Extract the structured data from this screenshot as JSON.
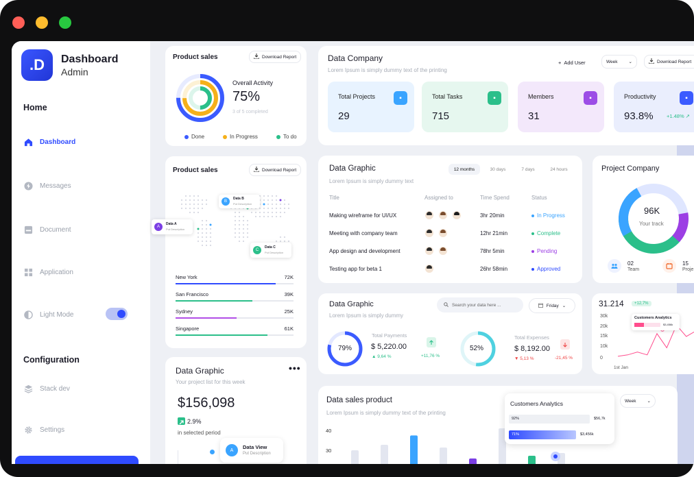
{
  "sidebar": {
    "logo": ".D",
    "brand_title": "Dashboard",
    "brand_sub": "Admin",
    "section_home": "Home",
    "items": [
      {
        "label": "Dashboard",
        "icon": "home-icon",
        "active": true
      },
      {
        "label": "Messages",
        "icon": "bolt-icon"
      },
      {
        "label": "Document",
        "icon": "inbox-icon"
      },
      {
        "label": "Application",
        "icon": "grid-icon"
      },
      {
        "label": "Light Mode",
        "icon": "contrast-icon"
      }
    ],
    "section_config": "Configuration",
    "config_items": [
      {
        "label": "Stack dev",
        "icon": "layers-icon"
      },
      {
        "label": "Settings",
        "icon": "gear-icon"
      }
    ]
  },
  "product_sales_1": {
    "title": "Product sales",
    "download": "Download Report",
    "activity_label": "Overall Activity",
    "percent": "75%",
    "completed": "3 of 5 completed",
    "legend": [
      {
        "label": "Done",
        "color": "#3b5bff"
      },
      {
        "label": "In Progress",
        "color": "#f5b01a"
      },
      {
        "label": "To do",
        "color": "#2bbf8a"
      }
    ]
  },
  "product_sales_2": {
    "title": "Product sales",
    "download": "Download Report",
    "map_pins": [
      {
        "letter": "B",
        "name": "Data B",
        "desc": "Put Description",
        "color": "#3aa4ff"
      },
      {
        "letter": "A",
        "name": "Data A",
        "desc": "Put Description",
        "color": "#7b3fe4"
      },
      {
        "letter": "C",
        "name": "Data C",
        "desc": "Put Description",
        "color": "#2bbf8a"
      }
    ],
    "cities": [
      {
        "name": "New York",
        "value": "72K",
        "fill": 0.85,
        "color": "#2f4bff"
      },
      {
        "name": "San Francisco",
        "value": "39K",
        "fill": 0.65,
        "color": "#2bbf8a"
      },
      {
        "name": "Sydney",
        "value": "25K",
        "fill": 0.52,
        "color": "#b14ee6"
      },
      {
        "name": "Singapore",
        "value": "61K",
        "fill": 0.78,
        "color": "#2bbf8a"
      }
    ]
  },
  "data_graphic_left": {
    "title": "Data Graphic",
    "sub": "Your project list for this week",
    "amount": "$156,098",
    "change": "2.9%",
    "period": "in selected period",
    "tooltip_letter": "A",
    "tooltip_title": "Data View",
    "tooltip_desc": "Put Description"
  },
  "data_company": {
    "title": "Data Company",
    "sub": "Lorem Ipsum is simply dummy text of the printing",
    "add_user": "Add User",
    "period": "Week",
    "download": "Download Report",
    "stats": [
      {
        "label": "Total Projects",
        "value": "29",
        "bg": "#e8f3ff",
        "badge": "#3aa4ff",
        "icon": "book-icon"
      },
      {
        "label": "Total Tasks",
        "value": "715",
        "bg": "#e6f7ef",
        "badge": "#2bbf8a",
        "icon": "briefcase-icon"
      },
      {
        "label": "Members",
        "value": "31",
        "bg": "#f3e8fb",
        "badge": "#9c4de6",
        "icon": "document-icon"
      },
      {
        "label": "Productivity",
        "value": "93.8%",
        "change": "+1.48%",
        "bg": "#eaeefd",
        "badge": "#3b5bff",
        "icon": "users-icon"
      }
    ]
  },
  "data_graphic_table": {
    "title": "Data Graphic",
    "sub": "Lorem Ipsum is simply dummy text",
    "ranges": [
      "12 months",
      "30 days",
      "7 days",
      "24 hours"
    ],
    "columns": [
      "Title",
      "Assigned to",
      "Time Spend",
      "Status"
    ],
    "rows": [
      {
        "title": "Making wireframe for UI/UX",
        "time": "3hr 20min",
        "status": "In Progress",
        "color": "#3aa4ff",
        "avatars": 3
      },
      {
        "title": "Meeting with company team",
        "time": "12hr 21min",
        "status": "Complete",
        "color": "#2bbf8a",
        "avatars": 2
      },
      {
        "title": "App design and development",
        "time": "78hr 5min",
        "status": "Pending",
        "color": "#9c3fe4",
        "avatars": 2
      },
      {
        "title": "Testing app for beta 1",
        "time": "26hr 58min",
        "status": "Approved",
        "color": "#2f4bff",
        "avatars": 1
      }
    ]
  },
  "project_company": {
    "title": "Project Company",
    "value": "96K",
    "label": "Your track",
    "team_count": "02",
    "team_label": "Team",
    "proj_count": "15",
    "proj_label": "Proje"
  },
  "data_graphic_payments": {
    "title": "Data Graphic",
    "sub": "Lorem Ipsum is simply dummy",
    "search_placeholder": "Search your data here ...",
    "day": "Friday",
    "payments_pct": "79%",
    "payments_label": "Total Payments",
    "payments_value": "$ 5,220.00",
    "payments_change": "9,64 %",
    "payments_badge": "+11,76 %",
    "expenses_pct": "52%",
    "expenses_label": "Total Expenses",
    "expenses_value": "$ 8,192.00",
    "expenses_change": "5,13 %",
    "expenses_badge": "-21,45 %"
  },
  "mini_chart": {
    "value": "31.214",
    "badge": "+12,7%",
    "popup_title": "Customers Analytics",
    "popup_value": "$3,456k",
    "x_label": "1st Jan"
  },
  "sales_product": {
    "title": "Data sales product",
    "sub": "Lorem Ipsum is simply dummy text of the printing",
    "period": "Week",
    "popup_title": "Customers Analytics",
    "popup_row1_pct": "92%",
    "popup_row1_val": "$56,7k",
    "popup_row2_pct": "71%",
    "popup_row2_val": "$3,456k"
  },
  "chart_data": [
    {
      "type": "line",
      "x": [
        "1st Jan",
        "",
        "",
        "",
        "",
        "",
        "",
        "",
        ""
      ],
      "series": [
        {
          "values": [
            2,
            3,
            5,
            3,
            18,
            8,
            24,
            16,
            20
          ]
        }
      ],
      "ylim": [
        0,
        30
      ],
      "yticks": [
        "30k",
        "20k",
        "15k",
        "10k",
        "0"
      ]
    },
    {
      "type": "bar",
      "yticks": [
        "40",
        "30"
      ],
      "bars": [
        {
          "value": 0.45,
          "color": "#e3e6f0"
        },
        {
          "value": 0.55,
          "color": "#e3e6f0"
        },
        {
          "value": 0.72,
          "color": "#3aa4ff"
        },
        {
          "value": 0.5,
          "color": "#e3e6f0"
        },
        {
          "value": 0.3,
          "color": "#7b3fe4"
        },
        {
          "value": 0.85,
          "color": "#e3e6f0"
        },
        {
          "value": 0.35,
          "color": "#2bbf8a"
        },
        {
          "value": 0.4,
          "color": "#e3e6f0"
        }
      ]
    }
  ]
}
